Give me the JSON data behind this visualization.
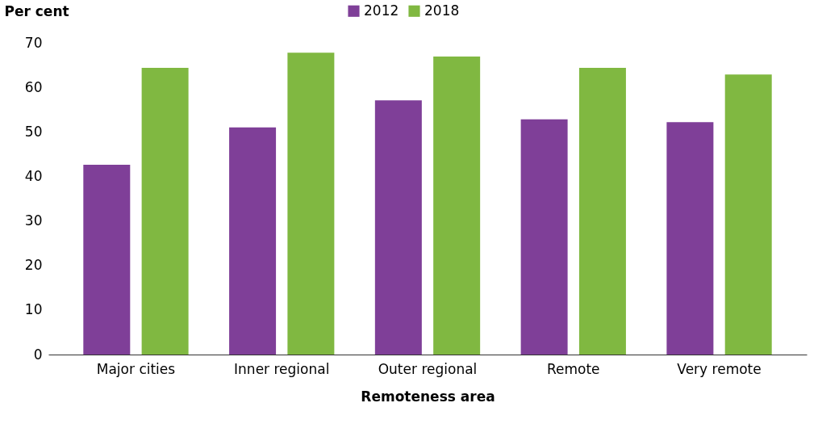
{
  "chart_data": {
    "type": "bar",
    "xlabel": "Remoteness area",
    "ylabel": "Per cent",
    "categories": [
      "Major cities",
      "Inner regional",
      "Outer regional",
      "Remote",
      "Very remote"
    ],
    "series": [
      {
        "name": "2012",
        "color": "#7f3f98",
        "values": [
          42.6,
          51.0,
          57.1,
          52.8,
          52.2
        ]
      },
      {
        "name": "2018",
        "color": "#80b841",
        "values": [
          64.4,
          67.8,
          66.9,
          64.4,
          62.9
        ]
      }
    ],
    "ylim": [
      0,
      70
    ],
    "yticks": [
      0,
      10,
      20,
      30,
      40,
      50,
      60,
      70
    ],
    "grid": false,
    "legend": "top"
  }
}
